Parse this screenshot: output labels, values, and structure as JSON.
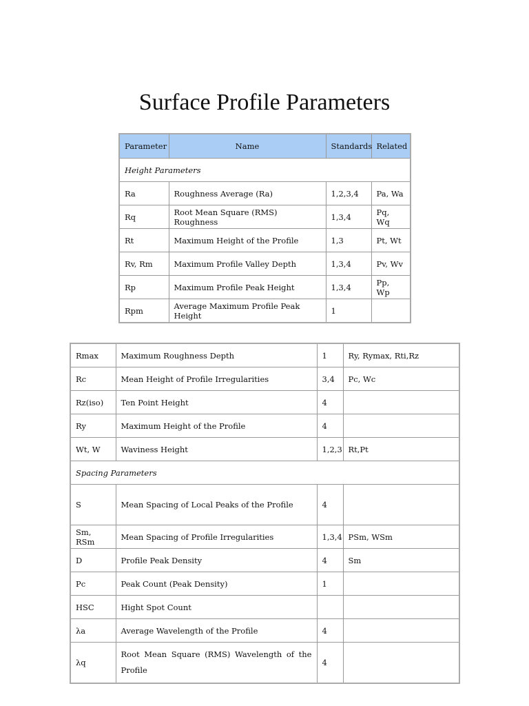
{
  "title": "Surface Profile Parameters",
  "table1": {
    "headers": [
      "Parameter",
      "Name",
      "Standards",
      "Related"
    ],
    "section": "Height Parameters",
    "rows": [
      [
        "Ra",
        "Roughness Average (Ra)",
        "1,2,3,4",
        "Pa, Wa"
      ],
      [
        "Rq",
        "Root Mean Square (RMS) Roughness",
        "1,3,4",
        "Pq, Wq"
      ],
      [
        "Rt",
        "Maximum Height of the Profile",
        "1,3",
        "Pt, Wt"
      ],
      [
        "Rv, Rm",
        "Maximum Profile Valley Depth",
        "1,3,4",
        "Pv, Wv"
      ],
      [
        "Rp",
        "Maximum Profile Peak Height",
        "1,3,4",
        "Pp, Wp"
      ],
      [
        "Rpm",
        "Average Maximum Profile Peak Height",
        "1",
        ""
      ]
    ]
  },
  "table2": {
    "rows_a": [
      [
        "Rmax",
        "Maximum Roughness Depth",
        "1",
        "Ry, Rymax, Rti,Rz"
      ],
      [
        "Rc",
        "Mean Height of Profile Irregularities",
        "3,4",
        "Pc, Wc"
      ],
      [
        "Rz(iso)",
        "Ten Point Height",
        "4",
        ""
      ],
      [
        "Ry",
        "Maximum Height of the Profile",
        "4",
        ""
      ],
      [
        "Wt, W",
        "Waviness Height",
        "1,2,3",
        "Rt,Pt"
      ]
    ],
    "section": "Spacing Parameters",
    "rows_b": [
      [
        "S",
        "Mean Spacing of Local Peaks of the Profile",
        "4",
        ""
      ],
      [
        "Sm, RSm",
        "Mean Spacing of Profile Irregularities",
        "1,3,4",
        "PSm, WSm"
      ],
      [
        "D",
        "Profile Peak Density",
        "4",
        " Sm"
      ],
      [
        "Pc",
        "Peak Count (Peak Density)",
        "1",
        ""
      ],
      [
        "HSC",
        "Hight Spot Count",
        "",
        ""
      ],
      [
        "λa",
        "Average Wavelength of the Profile",
        "4",
        ""
      ],
      [
        "λq",
        "Root Mean Square (RMS) Wavelength of the Profile",
        "4",
        ""
      ]
    ]
  },
  "colors": {
    "header_bg": "#a9cdf5",
    "border": "#999999"
  }
}
